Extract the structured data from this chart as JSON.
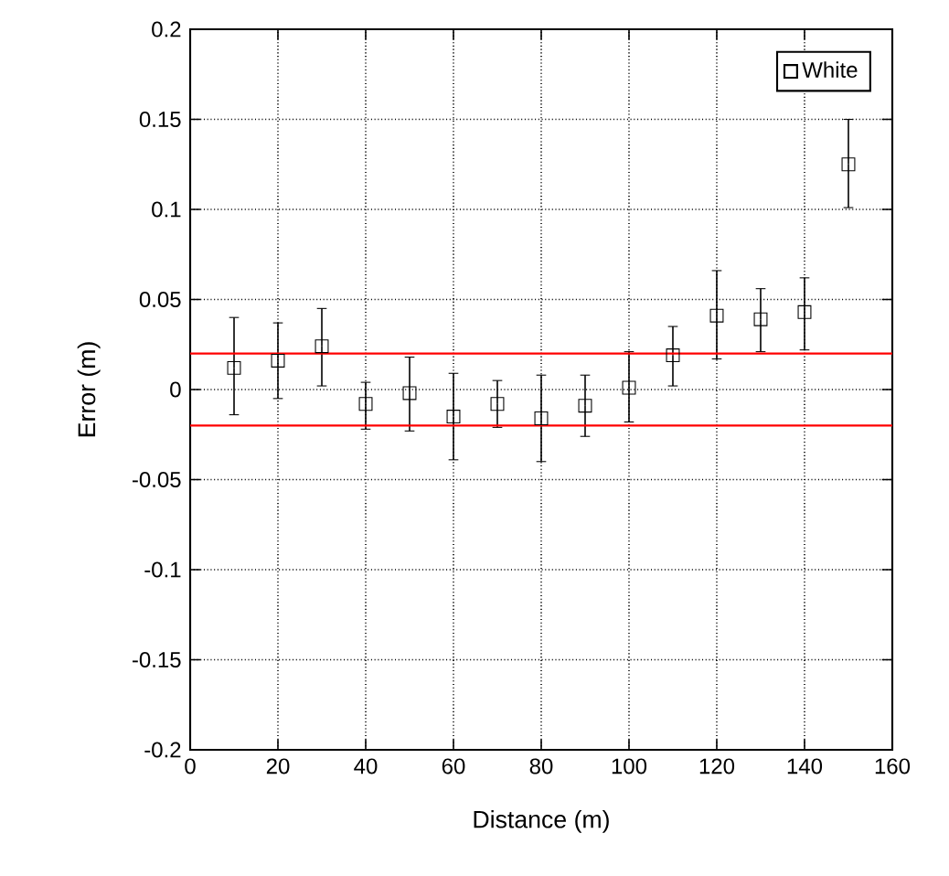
{
  "chart_data": {
    "type": "scatter",
    "xlabel": "Distance (m)",
    "ylabel": "Error (m)",
    "x": [
      10,
      20,
      30,
      40,
      50,
      60,
      70,
      80,
      90,
      100,
      110,
      120,
      130,
      140,
      150
    ],
    "series": [
      {
        "name": "White",
        "color": "#000000",
        "values": [
          0.012,
          0.016,
          0.024,
          -0.008,
          -0.002,
          -0.015,
          -0.008,
          -0.016,
          -0.009,
          0.001,
          0.019,
          0.041,
          0.039,
          0.043,
          0.125
        ],
        "errors": [
          [
            -0.014,
            0.04
          ],
          [
            -0.005,
            0.037
          ],
          [
            0.002,
            0.045
          ],
          [
            -0.022,
            0.004
          ],
          [
            -0.023,
            0.018
          ],
          [
            -0.039,
            0.009
          ],
          [
            -0.021,
            0.005
          ],
          [
            -0.04,
            0.008
          ],
          [
            -0.026,
            0.008
          ],
          [
            -0.018,
            0.021
          ],
          [
            0.002,
            0.035
          ],
          [
            0.017,
            0.066
          ],
          [
            0.021,
            0.056
          ],
          [
            0.022,
            0.062
          ],
          [
            0.101,
            0.15
          ]
        ]
      }
    ],
    "xlim": [
      0,
      160
    ],
    "ylim": [
      -0.2,
      0.2
    ],
    "xticks": [
      0,
      20,
      40,
      60,
      80,
      100,
      120,
      140,
      160
    ],
    "yticks": [
      -0.2,
      -0.15,
      -0.1,
      -0.05,
      0,
      0.05,
      0.1,
      0.15,
      0.2
    ],
    "ref_lines": [
      {
        "axis": "y",
        "value": 0.02,
        "color": "#ff0000"
      },
      {
        "axis": "y",
        "value": -0.02,
        "color": "#ff0000"
      }
    ],
    "grid": true,
    "legend": "top right",
    "marker": "square",
    "line_style": "none"
  }
}
